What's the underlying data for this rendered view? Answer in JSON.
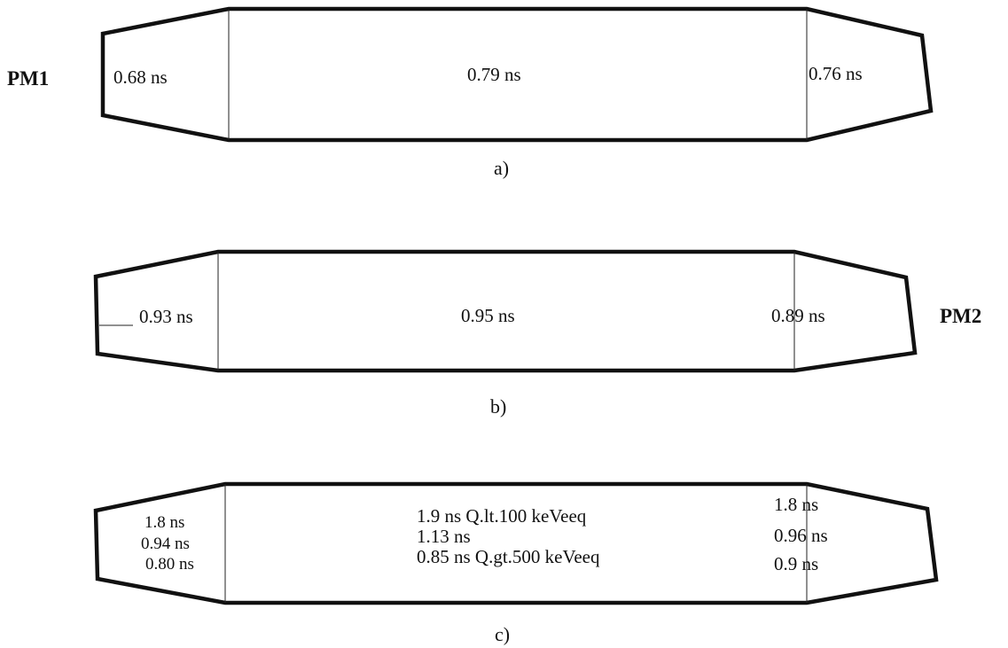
{
  "panel_a": {
    "caption": "a)",
    "pm_label": "PM1",
    "left": "0.68 ns",
    "center": "0.79 ns",
    "right": "0.76 ns"
  },
  "panel_b": {
    "caption": "b)",
    "pm_label": "PM2",
    "left": "0.93 ns",
    "center": "0.95 ns",
    "right": "0.89 ns"
  },
  "panel_c": {
    "caption": "c)",
    "left": [
      "1.8 ns",
      "0.94 ns",
      "0.80 ns"
    ],
    "center": [
      "1.9 ns Q.lt.100 keVeeq",
      "1.13 ns",
      "0.85 ns Q.gt.500 keVeeq"
    ],
    "right": [
      "1.8 ns",
      "0.96 ns",
      "0.9 ns"
    ]
  }
}
